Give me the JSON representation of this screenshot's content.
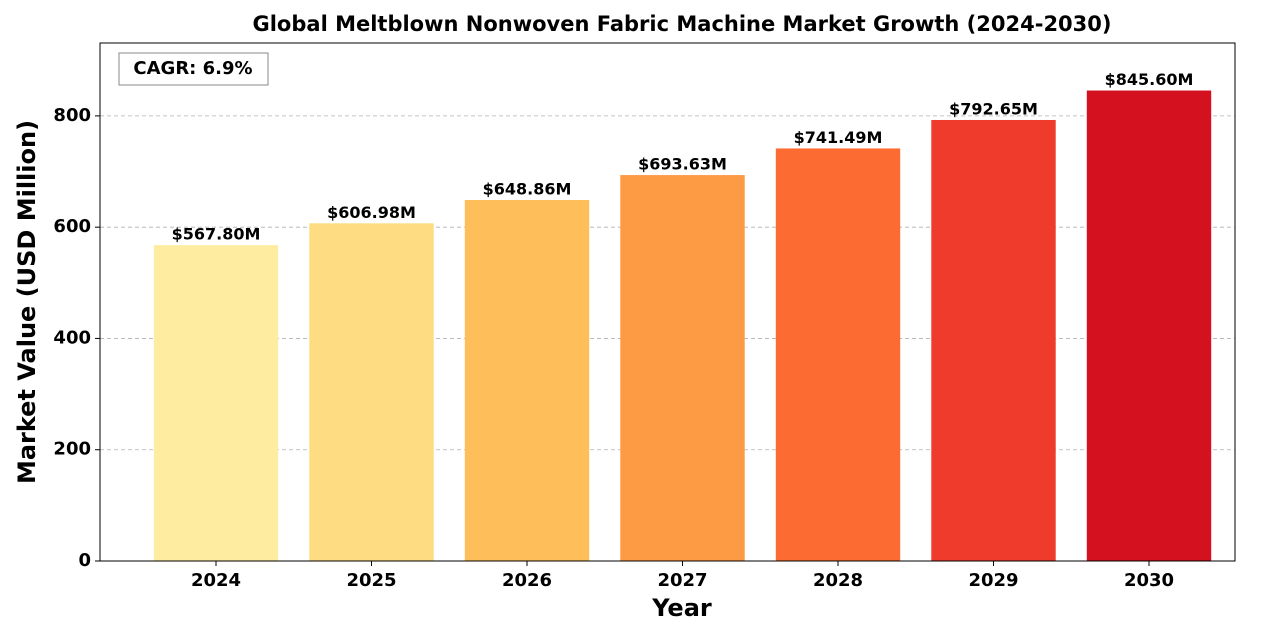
{
  "chart_data": {
    "type": "bar",
    "title": "Global Meltblown Nonwoven Fabric Machine Market Growth (2024-2030)",
    "xlabel": "Year",
    "ylabel": "Market Value (USD Million)",
    "annotation": "CAGR: 6.9%",
    "categories": [
      "2024",
      "2025",
      "2026",
      "2027",
      "2028",
      "2029",
      "2030"
    ],
    "values": [
      567.8,
      606.98,
      648.86,
      693.63,
      741.49,
      792.65,
      845.6
    ],
    "value_labels": [
      "$567.80M",
      "$606.98M",
      "$648.86M",
      "$693.63M",
      "$741.49M",
      "$792.65M",
      "$845.60M"
    ],
    "colors": [
      "#feeda0",
      "#fddc82",
      "#febf5a",
      "#fd9a44",
      "#fc6b32",
      "#ef3b2c",
      "#d4111f"
    ],
    "ylim": [
      0,
      931
    ],
    "yticks": [
      0,
      200,
      400,
      600,
      800
    ],
    "grid": true
  }
}
